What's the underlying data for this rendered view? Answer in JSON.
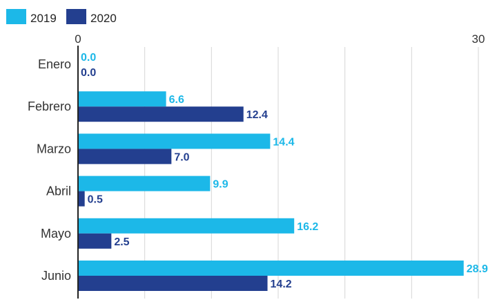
{
  "chart_data": {
    "type": "bar",
    "orientation": "horizontal",
    "title": "",
    "xlabel": "",
    "ylabel": "",
    "categories": [
      "Enero",
      "Febrero",
      "Marzo",
      "Abril",
      "Mayo",
      "Junio"
    ],
    "series": [
      {
        "name": "2019",
        "color": "#1cb8e8",
        "values": [
          0.0,
          6.6,
          14.4,
          9.9,
          16.2,
          28.9
        ]
      },
      {
        "name": "2020",
        "color": "#233f8f",
        "values": [
          0.0,
          12.4,
          7.0,
          0.5,
          2.5,
          14.2
        ]
      }
    ],
    "xlim": [
      0,
      30
    ],
    "x_tick_labels": [
      "0",
      "30"
    ],
    "grid": true,
    "legend_position": "top-left",
    "data_labels": true
  }
}
